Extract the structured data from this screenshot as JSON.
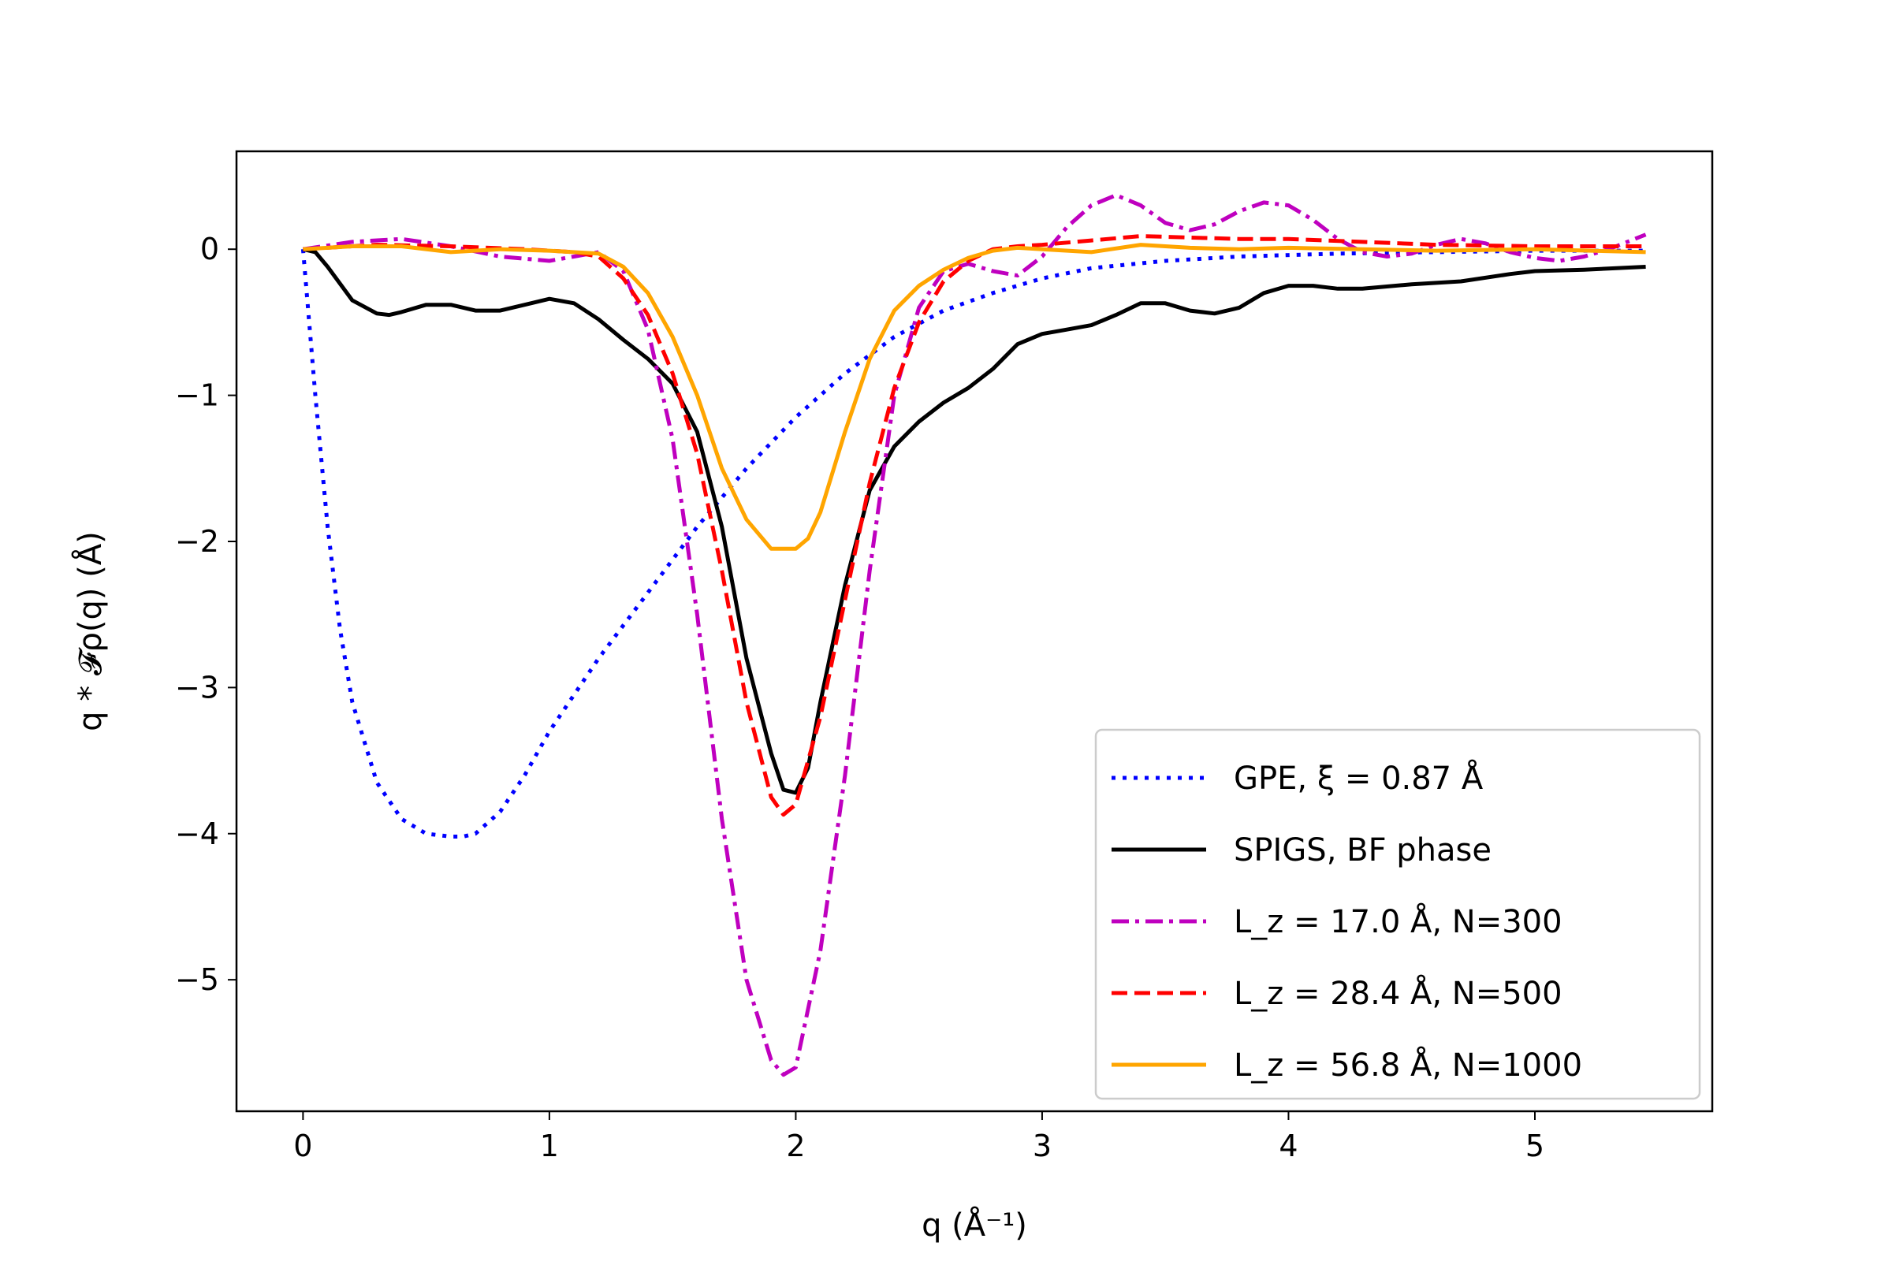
{
  "chart_data": {
    "type": "line",
    "title": "",
    "xlabel": "q (Å⁻¹)",
    "ylabel": "q * 𝓕ρ(q) (Å)",
    "xlim": [
      -0.27,
      5.72
    ],
    "ylim": [
      -5.9,
      0.67
    ],
    "xticks": [
      0,
      1,
      2,
      3,
      4,
      5
    ],
    "yticks": [
      0,
      -1,
      -2,
      -3,
      -4,
      -5
    ],
    "xtick_labels": [
      "0",
      "1",
      "2",
      "3",
      "4",
      "5"
    ],
    "ytick_labels": [
      "0",
      "−1",
      "−2",
      "−3",
      "−4",
      "−5"
    ],
    "grid": false,
    "legend_position": "lower-right",
    "series": [
      {
        "name": "GPE, ξ = 0.87 Å",
        "color": "#0000ff",
        "style": "dotted",
        "x": [
          0,
          0.05,
          0.1,
          0.15,
          0.2,
          0.3,
          0.4,
          0.5,
          0.6,
          0.65,
          0.7,
          0.8,
          0.9,
          1.0,
          1.2,
          1.4,
          1.6,
          1.8,
          2.0,
          2.2,
          2.4,
          2.6,
          2.8,
          3.0,
          3.2,
          3.5,
          3.8,
          4.2,
          4.6,
          5.0,
          5.45
        ],
        "y": [
          0,
          -1.0,
          -1.9,
          -2.6,
          -3.1,
          -3.65,
          -3.9,
          -4.0,
          -4.02,
          -4.02,
          -4.0,
          -3.85,
          -3.6,
          -3.3,
          -2.8,
          -2.35,
          -1.9,
          -1.5,
          -1.15,
          -0.85,
          -0.6,
          -0.42,
          -0.3,
          -0.2,
          -0.13,
          -0.08,
          -0.05,
          -0.03,
          -0.02,
          -0.01,
          -0.01
        ]
      },
      {
        "name": "SPIGS, BF phase",
        "color": "#000000",
        "style": "solid",
        "x": [
          0,
          0.05,
          0.1,
          0.2,
          0.3,
          0.35,
          0.4,
          0.5,
          0.6,
          0.7,
          0.8,
          0.9,
          1.0,
          1.1,
          1.2,
          1.3,
          1.4,
          1.5,
          1.6,
          1.7,
          1.8,
          1.9,
          1.95,
          2.0,
          2.05,
          2.1,
          2.2,
          2.3,
          2.4,
          2.5,
          2.6,
          2.7,
          2.8,
          2.9,
          3.0,
          3.1,
          3.2,
          3.3,
          3.4,
          3.5,
          3.6,
          3.7,
          3.8,
          3.9,
          4.0,
          4.1,
          4.2,
          4.3,
          4.5,
          4.7,
          4.9,
          5.0,
          5.2,
          5.45
        ],
        "y": [
          0,
          -0.02,
          -0.12,
          -0.35,
          -0.44,
          -0.45,
          -0.43,
          -0.38,
          -0.38,
          -0.42,
          -0.42,
          -0.38,
          -0.34,
          -0.37,
          -0.48,
          -0.62,
          -0.75,
          -0.92,
          -1.25,
          -1.9,
          -2.8,
          -3.45,
          -3.7,
          -3.72,
          -3.55,
          -3.1,
          -2.3,
          -1.65,
          -1.35,
          -1.18,
          -1.05,
          -0.95,
          -0.82,
          -0.65,
          -0.58,
          -0.55,
          -0.52,
          -0.45,
          -0.37,
          -0.37,
          -0.42,
          -0.44,
          -0.4,
          -0.3,
          -0.25,
          -0.25,
          -0.27,
          -0.27,
          -0.24,
          -0.22,
          -0.17,
          -0.15,
          -0.14,
          -0.12
        ]
      },
      {
        "name": "L_z = 17.0 Å, N=300",
        "color": "#bf00bf",
        "style": "dashdot",
        "x": [
          0,
          0.2,
          0.4,
          0.6,
          0.8,
          1.0,
          1.1,
          1.2,
          1.3,
          1.4,
          1.5,
          1.6,
          1.7,
          1.8,
          1.9,
          1.95,
          2.0,
          2.1,
          2.2,
          2.3,
          2.4,
          2.5,
          2.6,
          2.7,
          2.8,
          2.9,
          3.0,
          3.1,
          3.2,
          3.3,
          3.4,
          3.5,
          3.6,
          3.7,
          3.8,
          3.9,
          4.0,
          4.1,
          4.2,
          4.3,
          4.4,
          4.5,
          4.6,
          4.7,
          4.8,
          4.9,
          5.0,
          5.1,
          5.2,
          5.3,
          5.45
        ],
        "y": [
          0,
          0.05,
          0.07,
          0.02,
          -0.05,
          -0.08,
          -0.05,
          -0.02,
          -0.15,
          -0.55,
          -1.3,
          -2.5,
          -3.9,
          -5.0,
          -5.55,
          -5.65,
          -5.6,
          -4.8,
          -3.6,
          -2.2,
          -1.0,
          -0.4,
          -0.15,
          -0.1,
          -0.15,
          -0.18,
          -0.05,
          0.15,
          0.3,
          0.37,
          0.3,
          0.18,
          0.13,
          0.17,
          0.26,
          0.32,
          0.3,
          0.2,
          0.07,
          -0.02,
          -0.05,
          -0.03,
          0.03,
          0.07,
          0.04,
          -0.02,
          -0.06,
          -0.08,
          -0.05,
          0.0,
          0.1
        ]
      },
      {
        "name": "L_z = 28.4 Å, N=500",
        "color": "#ff0000",
        "style": "dashed",
        "x": [
          0,
          0.3,
          0.6,
          0.9,
          1.1,
          1.2,
          1.3,
          1.4,
          1.5,
          1.6,
          1.7,
          1.8,
          1.9,
          1.95,
          2.0,
          2.1,
          2.2,
          2.3,
          2.4,
          2.5,
          2.6,
          2.7,
          2.8,
          2.9,
          3.0,
          3.2,
          3.4,
          3.6,
          3.8,
          4.0,
          4.3,
          4.6,
          5.0,
          5.45
        ],
        "y": [
          0,
          0.03,
          0.02,
          0.0,
          -0.02,
          -0.05,
          -0.2,
          -0.45,
          -0.85,
          -1.4,
          -2.2,
          -3.1,
          -3.75,
          -3.87,
          -3.8,
          -3.2,
          -2.4,
          -1.6,
          -0.95,
          -0.5,
          -0.22,
          -0.08,
          0.0,
          0.02,
          0.03,
          0.06,
          0.09,
          0.08,
          0.07,
          0.07,
          0.05,
          0.03,
          0.02,
          0.02
        ]
      },
      {
        "name": "L_z = 56.8 Å, N=1000",
        "color": "#ffa500",
        "style": "solid",
        "x": [
          0,
          0.2,
          0.4,
          0.6,
          0.8,
          1.0,
          1.2,
          1.3,
          1.4,
          1.5,
          1.6,
          1.7,
          1.8,
          1.9,
          1.95,
          2.0,
          2.05,
          2.1,
          2.2,
          2.3,
          2.4,
          2.5,
          2.6,
          2.7,
          2.8,
          2.9,
          3.0,
          3.2,
          3.4,
          3.6,
          3.8,
          4.0,
          4.3,
          4.6,
          5.0,
          5.45
        ],
        "y": [
          0,
          0.02,
          0.02,
          -0.02,
          0.0,
          -0.01,
          -0.03,
          -0.12,
          -0.3,
          -0.6,
          -1.0,
          -1.5,
          -1.85,
          -2.05,
          -2.05,
          -2.05,
          -1.98,
          -1.8,
          -1.25,
          -0.75,
          -0.42,
          -0.25,
          -0.14,
          -0.06,
          -0.01,
          0.01,
          0.0,
          -0.02,
          0.03,
          0.01,
          0.0,
          0.01,
          0.0,
          -0.01,
          0.0,
          -0.02
        ]
      }
    ],
    "legend": [
      {
        "label": "GPE, ξ = 0.87 Å",
        "color": "#0000ff",
        "style": "dotted"
      },
      {
        "label": "SPIGS, BF phase",
        "color": "#000000",
        "style": "solid"
      },
      {
        "label": "L_z = 17.0 Å, N=300",
        "color": "#bf00bf",
        "style": "dashdot"
      },
      {
        "label": "L_z = 28.4 Å, N=500",
        "color": "#ff0000",
        "style": "dashed"
      },
      {
        "label": "L_z = 56.8 Å, N=1000",
        "color": "#ffa500",
        "style": "solid"
      }
    ]
  }
}
